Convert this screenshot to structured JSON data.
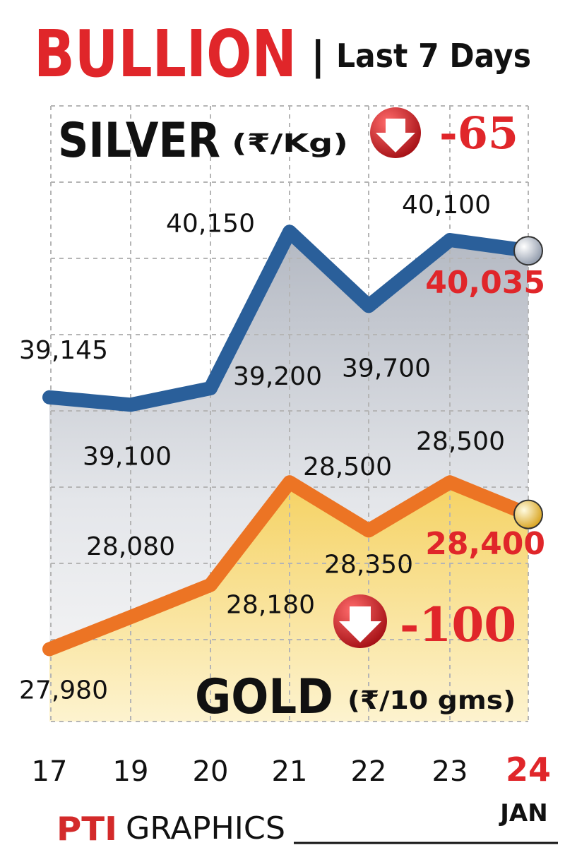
{
  "header": {
    "title": "BULLION",
    "separator": "|",
    "subtitle": "Last 7 Days"
  },
  "silver": {
    "name": "SILVER",
    "unit": "(₹/Kg)",
    "change": "-65",
    "latest": "40,035"
  },
  "gold": {
    "name": "GOLD",
    "unit": "(₹/10 gms)",
    "change": "-100",
    "latest": "28,400"
  },
  "footer": {
    "brand": "PTI",
    "label": "GRAPHICS"
  },
  "colors": {
    "title_red": "#e0262a",
    "silver_line": "#2a5f9a",
    "gold_line": "#ec7424",
    "grid": "#b5b5b5",
    "change_badge": "#c8161d"
  },
  "chart_data": {
    "type": "line",
    "categories": [
      "17",
      "19",
      "20",
      "21",
      "22",
      "23",
      "24"
    ],
    "month": "JAN",
    "series": [
      {
        "name": "SILVER",
        "values": [
          39145,
          39100,
          39200,
          40150,
          39700,
          40100,
          40035
        ],
        "labels": [
          "39,145",
          "39,100",
          "39,200",
          "40,150",
          "39,700",
          "40,100",
          "40,035"
        ],
        "ylim": [
          38900,
          40400
        ]
      },
      {
        "name": "GOLD",
        "values": [
          27980,
          28080,
          28180,
          28500,
          28350,
          28500,
          28400
        ],
        "labels": [
          "27,980",
          "28,080",
          "28,180",
          "28,500",
          "28,350",
          "28,500",
          "28,400"
        ],
        "ylim": [
          27880,
          28650
        ]
      }
    ],
    "grid": true
  }
}
